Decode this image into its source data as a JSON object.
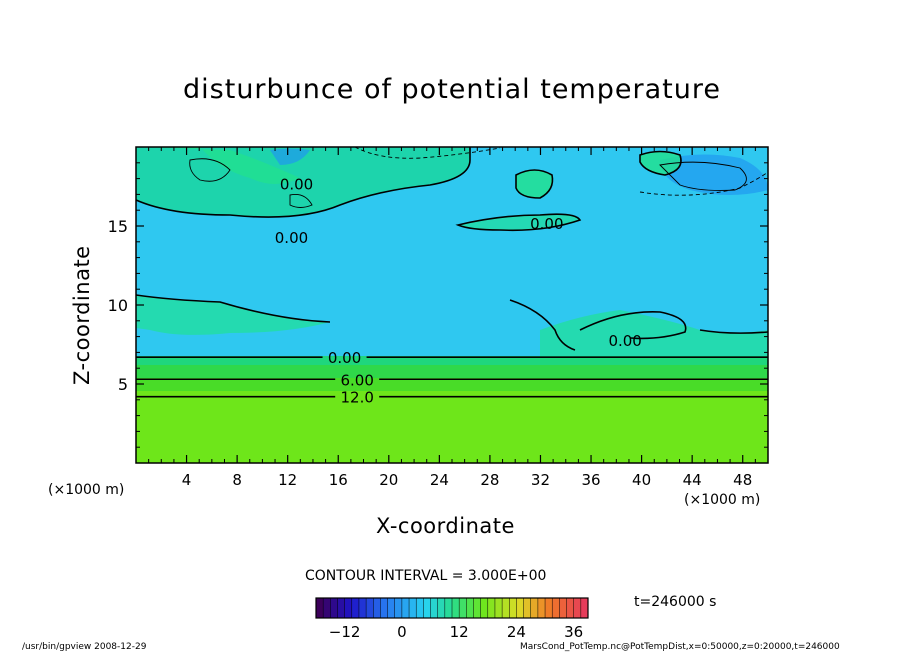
{
  "chart_data": {
    "type": "heatmap",
    "title": "disturbunce of potential temperature",
    "xlabel": "X-coordinate",
    "ylabel": "Z-coordinate",
    "x_unit_left": "(×1000 m)",
    "x_unit_right": "(×1000 m)",
    "xlim": [
      0,
      50
    ],
    "ylim": [
      0,
      20
    ],
    "x_ticks": [
      {
        "value": 4,
        "label": "4"
      },
      {
        "value": 8,
        "label": "8"
      },
      {
        "value": 12,
        "label": "12"
      },
      {
        "value": 16,
        "label": "16"
      },
      {
        "value": 20,
        "label": "20"
      },
      {
        "value": 24,
        "label": "24"
      },
      {
        "value": 28,
        "label": "28"
      },
      {
        "value": 32,
        "label": "32"
      },
      {
        "value": 36,
        "label": "36"
      },
      {
        "value": 40,
        "label": "40"
      },
      {
        "value": 44,
        "label": "44"
      },
      {
        "value": 48,
        "label": "48"
      }
    ],
    "y_ticks": [
      {
        "value": 5,
        "label": "5"
      },
      {
        "value": 10,
        "label": "10"
      },
      {
        "value": 15,
        "label": "15"
      }
    ],
    "contour_lines": [
      {
        "z": 4.2,
        "label": "12.0",
        "label_x": 17.5
      },
      {
        "z": 5.3,
        "label": "6.00",
        "label_x": 17.5
      },
      {
        "z": 6.7,
        "label": "0.00",
        "label_x": 16.5
      }
    ],
    "contour_labels_upper": [
      {
        "x": 12.7,
        "z": 17.7,
        "text": "0.00"
      },
      {
        "x": 12.3,
        "z": 14.3,
        "text": "0.00"
      },
      {
        "x": 32.5,
        "z": 15.2,
        "text": "0.00"
      },
      {
        "x": 38.7,
        "z": 7.8,
        "text": "0.00"
      }
    ],
    "contour_interval": "CONTOUR INTERVAL = 3.000E+00",
    "colorbar": {
      "min": -18,
      "max": 39,
      "tick_labels": [
        {
          "value": -12,
          "label": "−12"
        },
        {
          "value": 0,
          "label": "0"
        },
        {
          "value": 12,
          "label": "12"
        },
        {
          "value": 24,
          "label": "24"
        },
        {
          "value": 36,
          "label": "36"
        }
      ]
    },
    "time": "t=246000 s",
    "footer_left": "/usr/bin/gpview   2008-12-29",
    "footer_right": "MarsCond_PotTemp.nc@PotTempDist,x=0:50000,z=0:20000,t=246000"
  }
}
